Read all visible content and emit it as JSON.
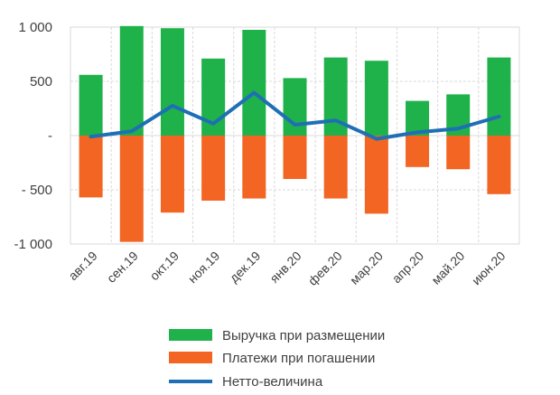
{
  "chart_data": {
    "type": "bar",
    "categories": [
      "авг.19",
      "сен.19",
      "окт.19",
      "ноя.19",
      "дек.19",
      "янв.20",
      "фев.20",
      "мар.20",
      "апр.20",
      "май.20",
      "июн.20"
    ],
    "y_tick_labels": [
      "1 000",
      "500",
      "-",
      "- 500",
      "-1 000"
    ],
    "y_ticks": [
      1000,
      500,
      0,
      -500,
      -1000
    ],
    "ylim": [
      -1000,
      1000
    ],
    "series": [
      {
        "name": "Выручка при размещении",
        "type": "bar",
        "color": "#1fb24a",
        "values": [
          560,
          1010,
          990,
          710,
          975,
          530,
          720,
          690,
          320,
          380,
          720
        ]
      },
      {
        "name": "Платежи при погашении",
        "type": "bar",
        "color": "#f26522",
        "values": [
          -570,
          -980,
          -710,
          -600,
          -580,
          -400,
          -580,
          -720,
          -290,
          -310,
          -540
        ]
      },
      {
        "name": "Нетто-величина",
        "type": "line",
        "color": "#1f6fb5",
        "values": [
          -10,
          40,
          275,
          110,
          395,
          100,
          140,
          -30,
          30,
          65,
          175
        ]
      }
    ],
    "title": "",
    "xlabel": "",
    "ylabel": "",
    "legend_position": "bottom"
  }
}
